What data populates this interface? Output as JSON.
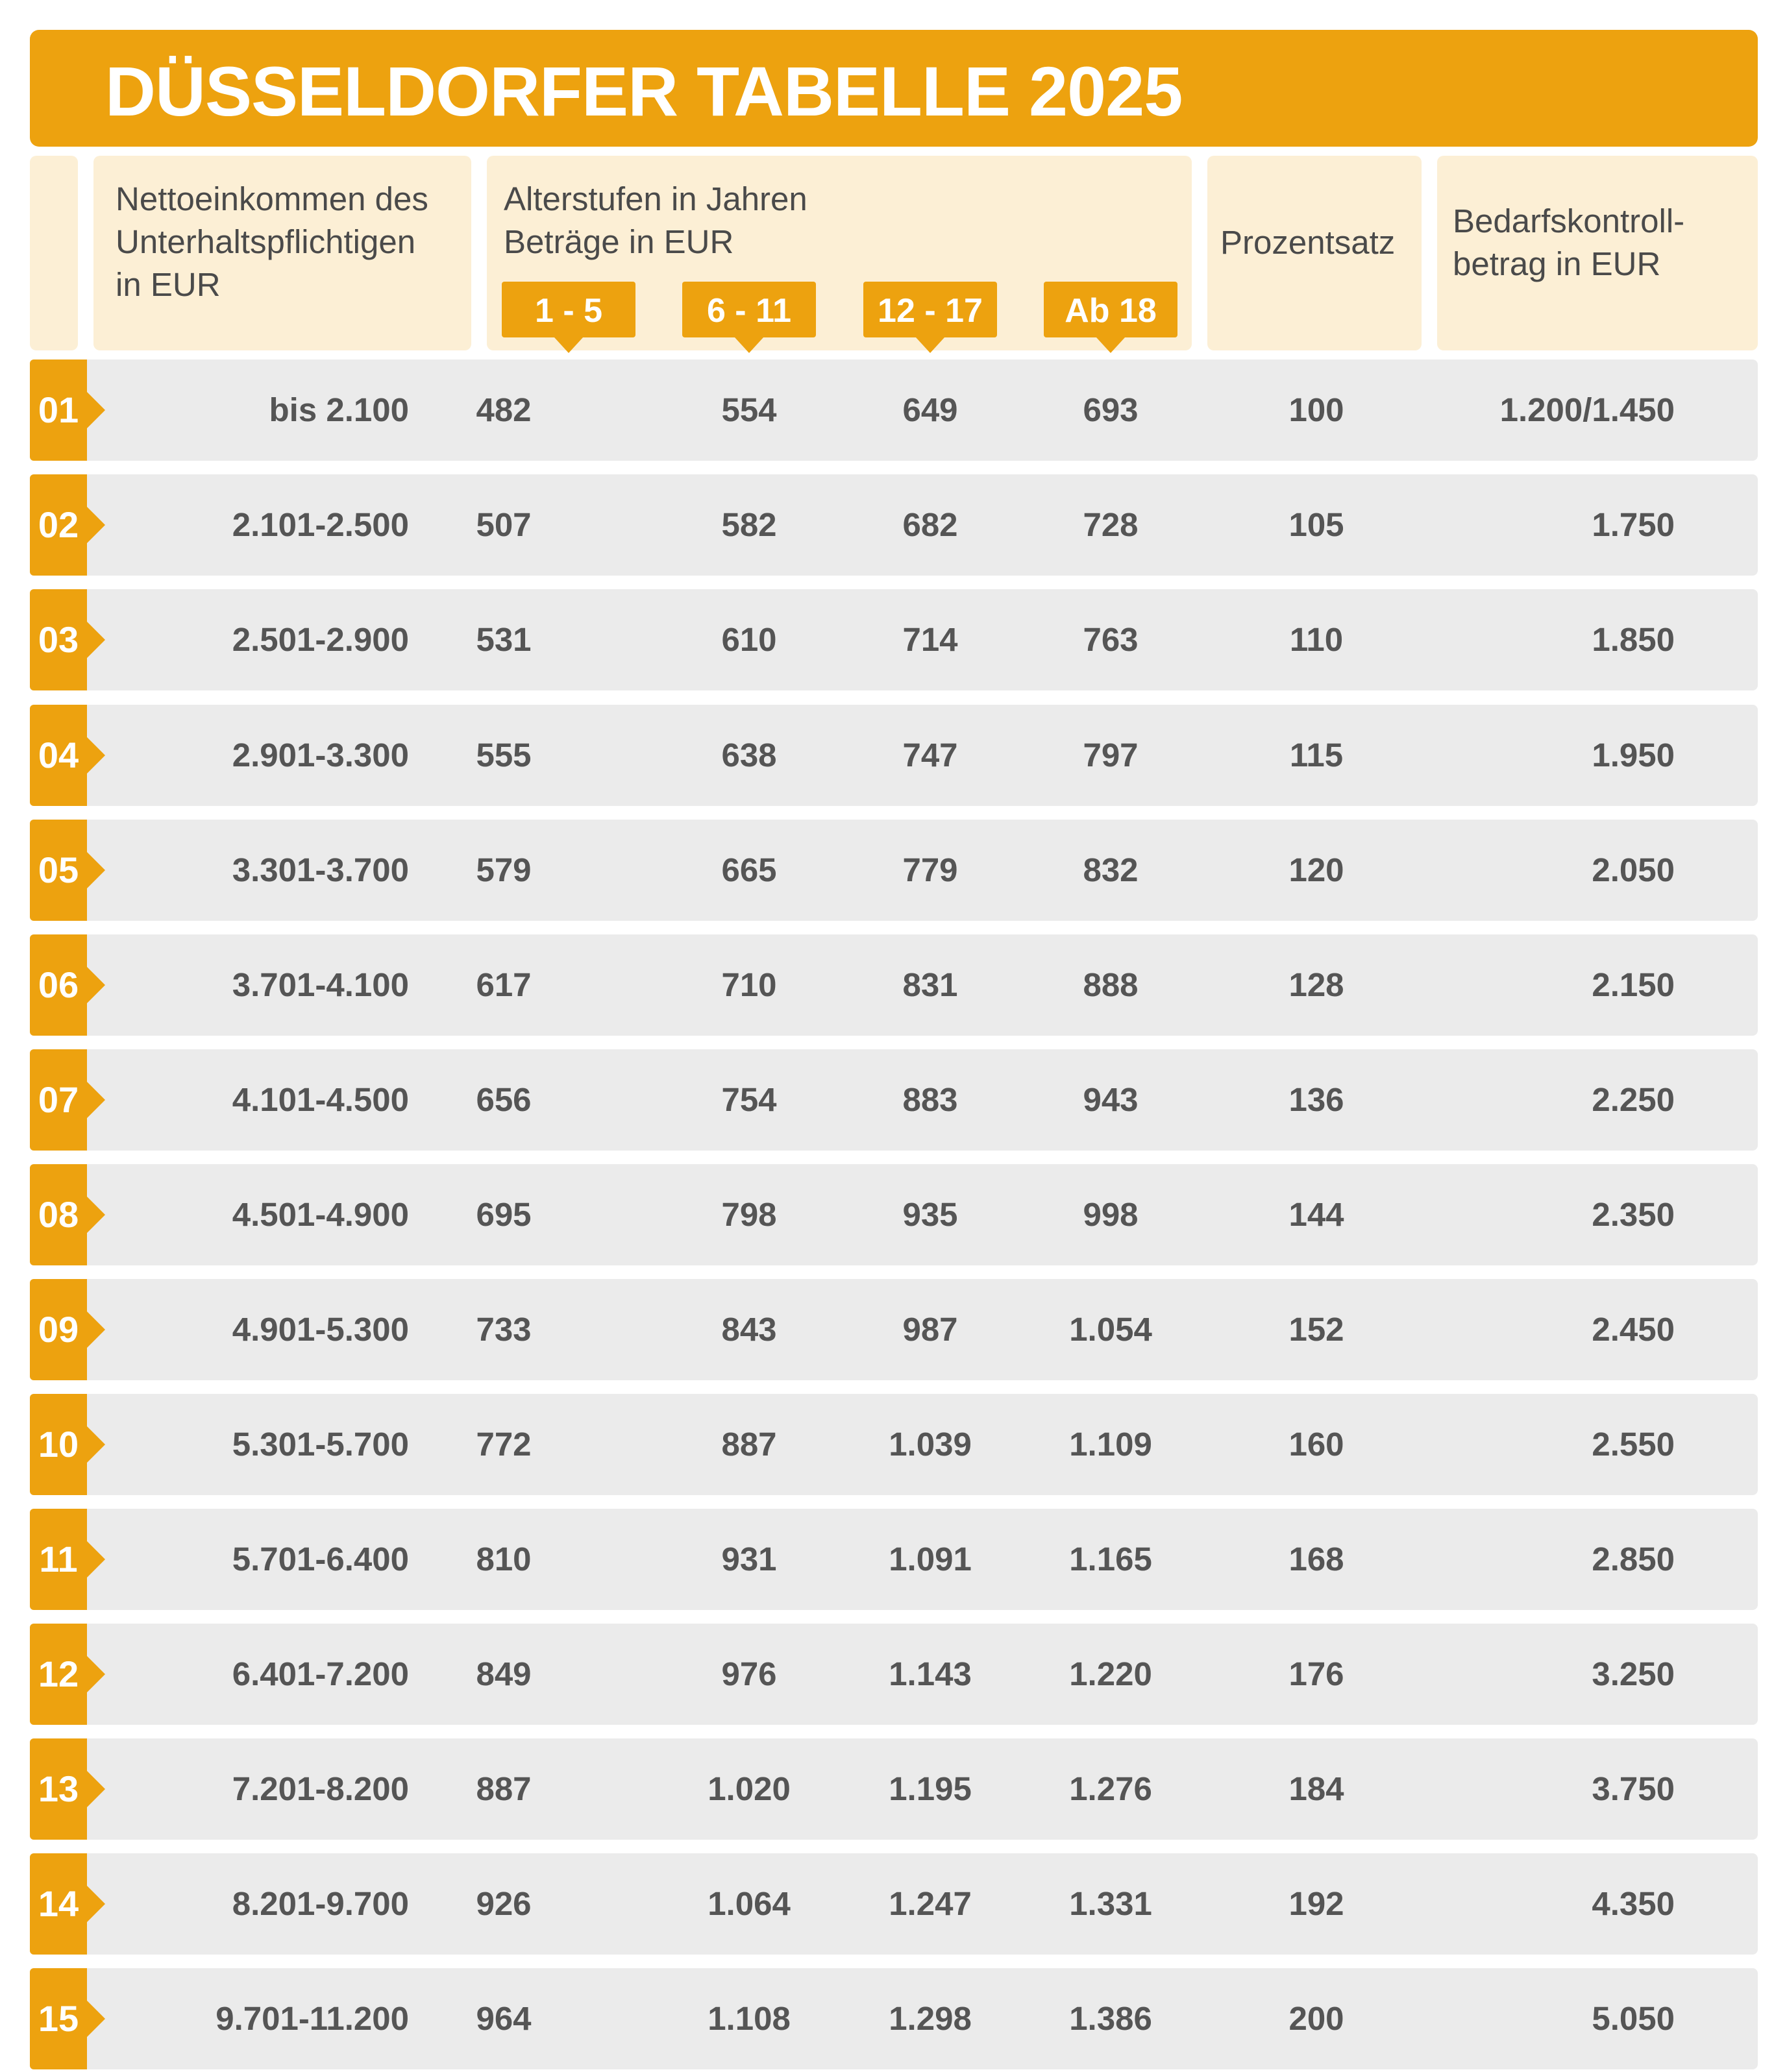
{
  "title": "DÜSSELDORFER TABELLE 2025",
  "header": {
    "income": "Nettoeinkommen des\nUnterhaltspflichtigen\nin EUR",
    "ages": "Alterstufen in Jahren\nBeträge in EUR",
    "age_groups": [
      "1 - 5",
      "6 - 11",
      "12 - 17",
      "Ab 18"
    ],
    "percent": "Prozentsatz",
    "bedarf": "Bedarfskontroll-\nbetrag in EUR"
  },
  "rows": [
    {
      "num": "01",
      "income": "bis 2.100",
      "a1": "482",
      "a2": "554",
      "a3": "649",
      "a4": "693",
      "pct": "100",
      "bedarf": "1.200/1.450"
    },
    {
      "num": "02",
      "income": "2.101-2.500",
      "a1": "507",
      "a2": "582",
      "a3": "682",
      "a4": "728",
      "pct": "105",
      "bedarf": "1.750"
    },
    {
      "num": "03",
      "income": "2.501-2.900",
      "a1": "531",
      "a2": "610",
      "a3": "714",
      "a4": "763",
      "pct": "110",
      "bedarf": "1.850"
    },
    {
      "num": "04",
      "income": "2.901-3.300",
      "a1": "555",
      "a2": "638",
      "a3": "747",
      "a4": "797",
      "pct": "115",
      "bedarf": "1.950"
    },
    {
      "num": "05",
      "income": "3.301-3.700",
      "a1": "579",
      "a2": "665",
      "a3": "779",
      "a4": "832",
      "pct": "120",
      "bedarf": "2.050"
    },
    {
      "num": "06",
      "income": "3.701-4.100",
      "a1": "617",
      "a2": "710",
      "a3": "831",
      "a4": "888",
      "pct": "128",
      "bedarf": "2.150"
    },
    {
      "num": "07",
      "income": "4.101-4.500",
      "a1": "656",
      "a2": "754",
      "a3": "883",
      "a4": "943",
      "pct": "136",
      "bedarf": "2.250"
    },
    {
      "num": "08",
      "income": "4.501-4.900",
      "a1": "695",
      "a2": "798",
      "a3": "935",
      "a4": "998",
      "pct": "144",
      "bedarf": "2.350"
    },
    {
      "num": "09",
      "income": "4.901-5.300",
      "a1": "733",
      "a2": "843",
      "a3": "987",
      "a4": "1.054",
      "pct": "152",
      "bedarf": "2.450"
    },
    {
      "num": "10",
      "income": "5.301-5.700",
      "a1": "772",
      "a2": "887",
      "a3": "1.039",
      "a4": "1.109",
      "pct": "160",
      "bedarf": "2.550"
    },
    {
      "num": "11",
      "income": "5.701-6.400",
      "a1": "810",
      "a2": "931",
      "a3": "1.091",
      "a4": "1.165",
      "pct": "168",
      "bedarf": "2.850"
    },
    {
      "num": "12",
      "income": "6.401-7.200",
      "a1": "849",
      "a2": "976",
      "a3": "1.143",
      "a4": "1.220",
      "pct": "176",
      "bedarf": "3.250"
    },
    {
      "num": "13",
      "income": "7.201-8.200",
      "a1": "887",
      "a2": "1.020",
      "a3": "1.195",
      "a4": "1.276",
      "pct": "184",
      "bedarf": "3.750"
    },
    {
      "num": "14",
      "income": "8.201-9.700",
      "a1": "926",
      "a2": "1.064",
      "a3": "1.247",
      "a4": "1.331",
      "pct": "192",
      "bedarf": "4.350"
    },
    {
      "num": "15",
      "income": "9.701-11.200",
      "a1": "964",
      "a2": "1.108",
      "a3": "1.298",
      "a4": "1.386",
      "pct": "200",
      "bedarf": "5.050"
    }
  ],
  "colors": {
    "accent": "#EDA20F",
    "header_bg": "#FCEFD5",
    "row_bg": "#EBEBEB",
    "text": "#555555"
  }
}
